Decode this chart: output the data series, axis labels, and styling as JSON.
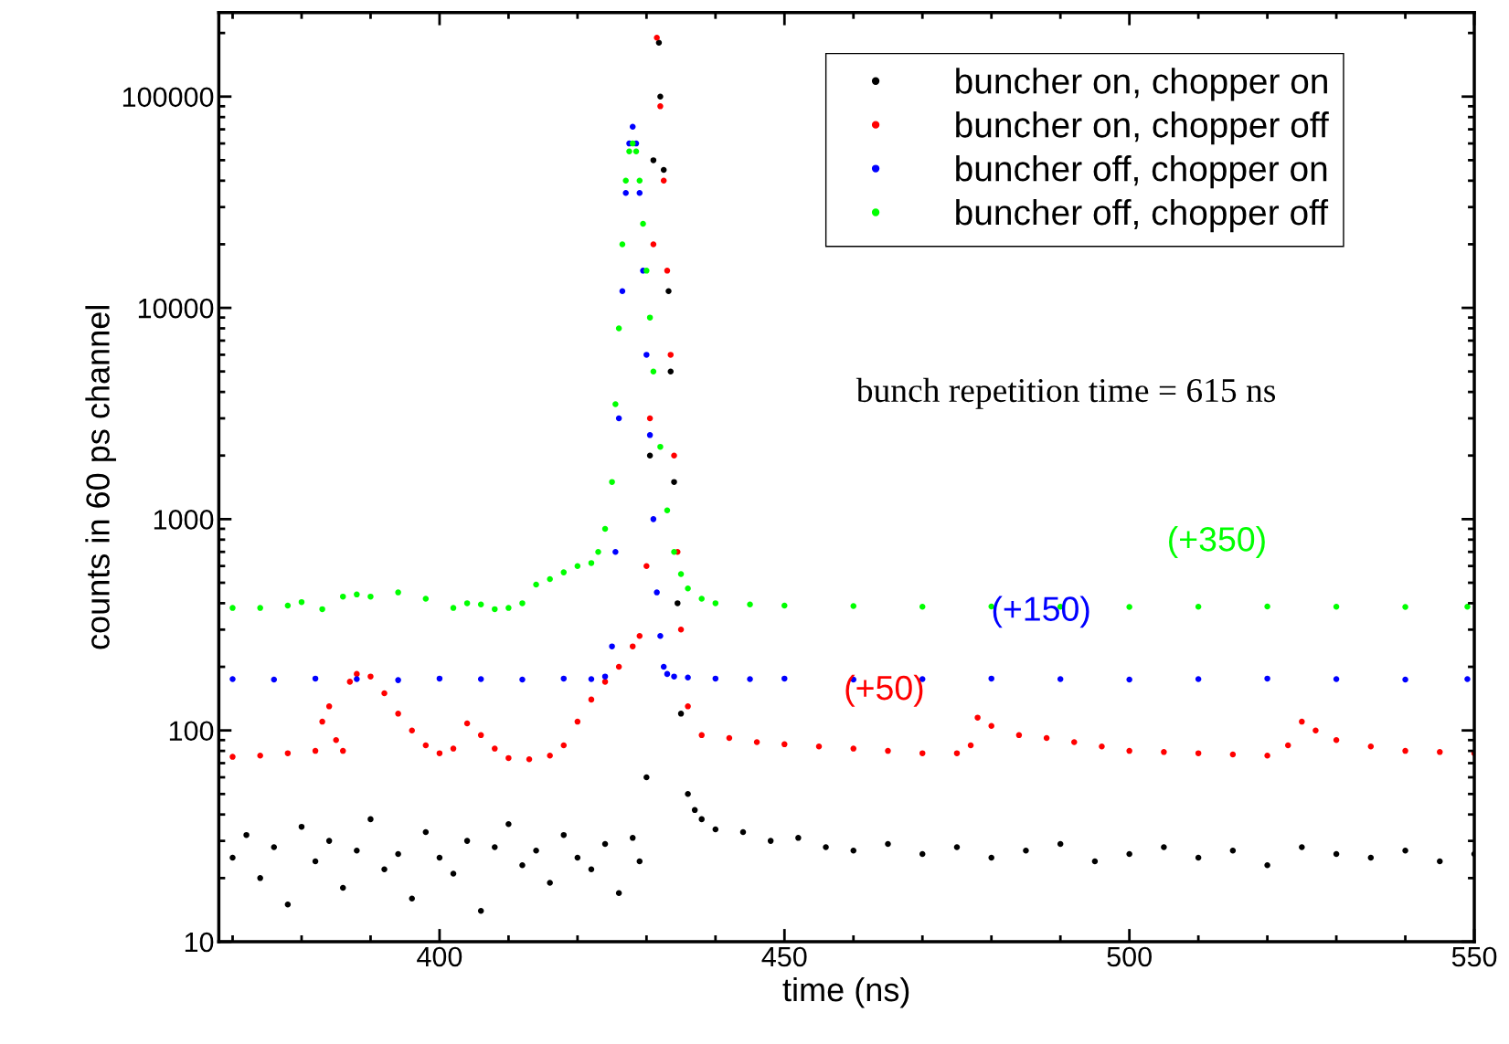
{
  "chart_data": {
    "type": "scatter",
    "xlabel": "time (ns)",
    "ylabel": "counts in 60 ps channel",
    "log": "y",
    "xlim": [
      368,
      550
    ],
    "xticks": [
      400,
      450,
      500,
      550
    ],
    "ylim": [
      10,
      250000
    ],
    "yticks": [
      10,
      100,
      1000,
      10000,
      100000
    ],
    "grid": false,
    "legend": "top right",
    "marker": "circle",
    "series": [
      {
        "name": "buncher on, chopper on",
        "color": "#000000",
        "x": [
          370,
          372,
          374,
          376,
          378,
          380,
          382,
          384,
          386,
          388,
          390,
          392,
          394,
          396,
          398,
          400,
          402,
          404,
          406,
          408,
          410,
          412,
          414,
          416,
          418,
          420,
          422,
          424,
          426,
          428,
          429,
          430,
          430.5,
          431,
          431.8,
          432,
          432.5,
          433.2,
          433.5,
          434,
          434.5,
          435,
          436,
          437,
          438,
          440,
          444,
          448,
          452,
          456,
          460,
          465,
          470,
          475,
          480,
          485,
          490,
          495,
          500,
          505,
          510,
          515,
          520,
          525,
          530,
          535,
          540,
          545,
          550
        ],
        "values": [
          25,
          32,
          20,
          28,
          15,
          35,
          24,
          30,
          18,
          27,
          38,
          22,
          26,
          16,
          33,
          25,
          21,
          30,
          14,
          28,
          36,
          23,
          27,
          19,
          32,
          25,
          22,
          29,
          17,
          31,
          24,
          60,
          2000,
          50000,
          180000,
          100000,
          45000,
          12000,
          5000,
          1500,
          400,
          120,
          50,
          42,
          38,
          34,
          33,
          30,
          31,
          28,
          27,
          29,
          26,
          28,
          25,
          27,
          29,
          24,
          26,
          28,
          25,
          27,
          23,
          28,
          26,
          25,
          27,
          24,
          26
        ]
      },
      {
        "name": "buncher on, chopper off",
        "color": "#ff0000",
        "x": [
          370,
          374,
          378,
          382,
          383,
          384,
          385,
          386,
          387,
          388,
          390,
          392,
          394,
          396,
          398,
          400,
          402,
          404,
          406,
          408,
          410,
          413,
          416,
          418,
          420,
          422,
          424,
          426,
          428,
          429,
          430,
          430.5,
          431,
          431.5,
          432,
          432.5,
          433,
          433.5,
          434,
          434.5,
          435,
          436,
          438,
          442,
          446,
          450,
          455,
          460,
          465,
          470,
          475,
          477,
          478,
          480,
          484,
          488,
          492,
          496,
          500,
          505,
          510,
          515,
          520,
          523,
          525,
          527,
          530,
          535,
          540,
          545,
          550
        ],
        "values": [
          75,
          76,
          78,
          80,
          110,
          130,
          90,
          80,
          170,
          185,
          180,
          150,
          120,
          100,
          85,
          78,
          82,
          108,
          95,
          82,
          74,
          73,
          76,
          85,
          110,
          140,
          170,
          200,
          250,
          280,
          600,
          3000,
          20000,
          190000,
          90000,
          40000,
          15000,
          6000,
          2000,
          700,
          300,
          130,
          95,
          92,
          88,
          86,
          84,
          82,
          80,
          78,
          78,
          85,
          115,
          105,
          95,
          92,
          88,
          84,
          80,
          79,
          78,
          77,
          76,
          85,
          110,
          100,
          90,
          84,
          80,
          79,
          78
        ]
      },
      {
        "name": "buncher off, chopper on",
        "color": "#0000ff",
        "x": [
          370,
          376,
          382,
          388,
          394,
          400,
          406,
          412,
          418,
          422,
          424,
          425,
          425.5,
          426,
          426.5,
          427,
          427.5,
          428,
          428.5,
          429,
          429.5,
          430,
          430.5,
          431,
          431.5,
          432,
          432.5,
          433,
          434,
          436,
          440,
          445,
          450,
          460,
          470,
          480,
          490,
          500,
          510,
          520,
          530,
          540,
          549
        ],
        "values": [
          175,
          174,
          176,
          175,
          173,
          176,
          175,
          174,
          176,
          175,
          180,
          250,
          700,
          3000,
          12000,
          35000,
          60000,
          72000,
          60000,
          35000,
          15000,
          6000,
          2500,
          1000,
          450,
          280,
          200,
          185,
          180,
          178,
          176,
          175,
          176,
          174,
          175,
          176,
          175,
          174,
          175,
          176,
          175,
          174,
          175
        ]
      },
      {
        "name": "buncher off, chopper off",
        "color": "#00ff00",
        "x": [
          370,
          374,
          378,
          380,
          383,
          386,
          388,
          390,
          394,
          398,
          402,
          404,
          406,
          408,
          410,
          412,
          414,
          416,
          418,
          420,
          422,
          423,
          424,
          425,
          425.5,
          426,
          426.5,
          427,
          427.5,
          428,
          428.5,
          429,
          429.5,
          430,
          430.5,
          431,
          432,
          433,
          434,
          435,
          436,
          438,
          440,
          445,
          450,
          460,
          470,
          480,
          490,
          500,
          510,
          520,
          530,
          540,
          549
        ],
        "values": [
          380,
          380,
          390,
          405,
          375,
          430,
          440,
          430,
          450,
          420,
          380,
          400,
          395,
          375,
          380,
          400,
          490,
          520,
          560,
          600,
          620,
          700,
          900,
          1500,
          3500,
          8000,
          20000,
          40000,
          55000,
          60000,
          55000,
          40000,
          25000,
          15000,
          9000,
          5000,
          2200,
          1100,
          700,
          550,
          470,
          420,
          400,
          395,
          390,
          388,
          385,
          386,
          385,
          384,
          385,
          386,
          385,
          384,
          385
        ]
      }
    ],
    "annotations": [
      "(+350)",
      "(+150)",
      "(+50)",
      "bunch repetition time = 615 ns"
    ]
  }
}
